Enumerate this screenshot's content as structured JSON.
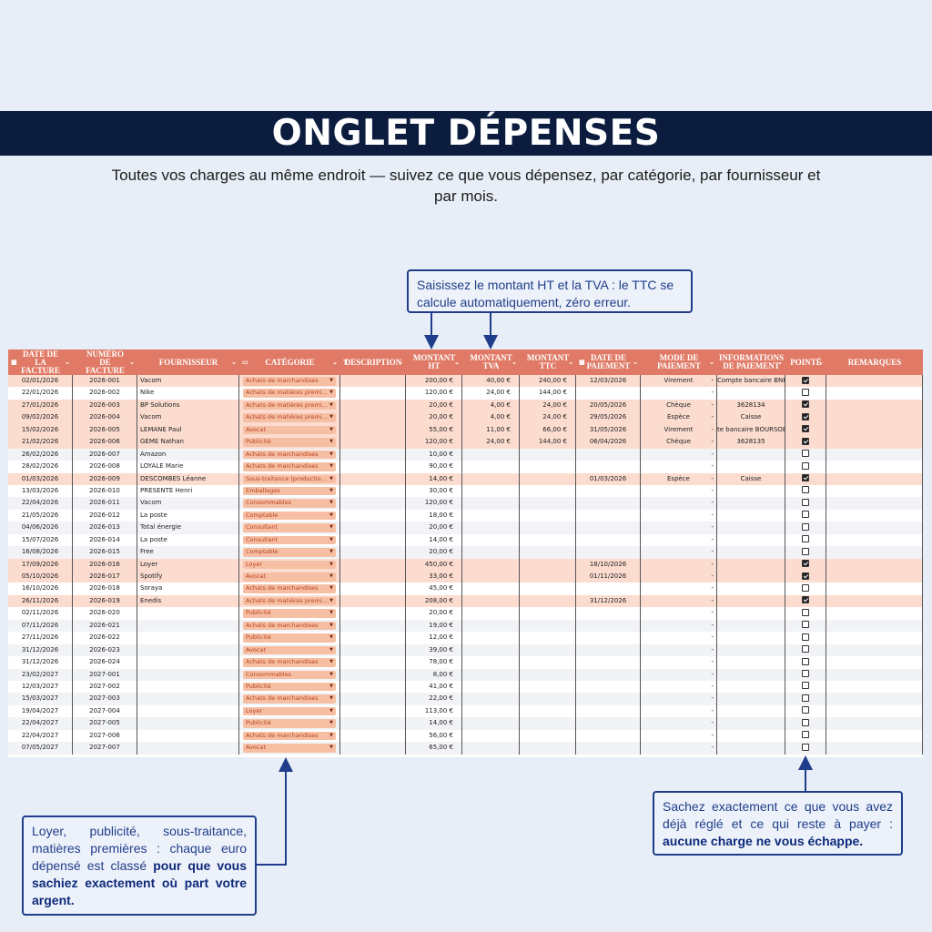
{
  "header": {
    "title": "ONGLET DÉPENSES",
    "subtitle": "Toutes vos charges au même endroit — suivez ce que vous dépensez, par catégorie, par fournisseur et par mois."
  },
  "callouts": {
    "top": "Saisissez le montant HT et la TVA : le TTC se calcule automatiquement, zéro erreur.",
    "left_plain": "Loyer, publicité, sous-traitance, matières premières : chaque euro dépensé est classé ",
    "left_bold": "pour que vous sachiez exactement où part votre argent.",
    "right_plain": "Sachez exactement ce que vous avez déjà réglé et ce qui reste à payer : ",
    "right_bold": "aucune charge ne vous échappe."
  },
  "colors": {
    "banner": "#0c1c3f",
    "header_row": "#e07a66",
    "row_pink": "#fbdccf",
    "chip": "#f6bfa3",
    "callout_border": "#1f3d8a"
  },
  "table": {
    "columns": [
      {
        "label": "Date de la facture",
        "icon": "calendar-icon",
        "chev": true
      },
      {
        "label": "Numéro de facture",
        "icon": "",
        "chev": true
      },
      {
        "label": "Fournisseur",
        "icon": "",
        "chev": true
      },
      {
        "label": "Catégorie",
        "icon": "dropdown-chip-icon",
        "chev": true
      },
      {
        "label": "Description",
        "icon": "text-icon",
        "chev": true
      },
      {
        "label": "Montant HT",
        "icon": "",
        "chev": true
      },
      {
        "label": "Montant TVA",
        "icon": "",
        "chev": true
      },
      {
        "label": "Montant TTC",
        "icon": "",
        "chev": true
      },
      {
        "label": "Date de paiement",
        "icon": "calendar-icon",
        "chev": true
      },
      {
        "label": "Mode de paiement",
        "icon": "",
        "chev": true
      },
      {
        "label": "Informations de paiement",
        "icon": "",
        "chev": true
      },
      {
        "label": "Pointé",
        "icon": "",
        "chev": true
      },
      {
        "label": "Remarques",
        "icon": "",
        "chev": false
      }
    ],
    "rows": [
      {
        "date": "02/01/2026",
        "num": "2026-001",
        "four": "Vacom",
        "cat": "Achats de marchandises",
        "ht": "200,00 €",
        "tva": "40,00 €",
        "ttc": "240,00 €",
        "pay": "12/03/2026",
        "mode": "Virement",
        "info": "Compte bancaire BNP",
        "chk": true
      },
      {
        "date": "22/01/2026",
        "num": "2026-002",
        "four": "Nike",
        "cat": "Achats de matières premi...",
        "ht": "120,00 €",
        "tva": "24,00 €",
        "ttc": "144,00 €",
        "pay": "",
        "mode": "",
        "info": "",
        "chk": false
      },
      {
        "date": "27/01/2026",
        "num": "2026-003",
        "four": "BP Solutions",
        "cat": "Achats de matières premi...",
        "ht": "20,00 €",
        "tva": "4,00 €",
        "ttc": "24,00 €",
        "pay": "20/05/2026",
        "mode": "Chèque",
        "info": "3628134",
        "chk": true
      },
      {
        "date": "09/02/2026",
        "num": "2026-004",
        "four": "Vacom",
        "cat": "Achats de matières premi...",
        "ht": "20,00 €",
        "tva": "4,00 €",
        "ttc": "24,00 €",
        "pay": "29/05/2026",
        "mode": "Espèce",
        "info": "Caisse",
        "chk": true
      },
      {
        "date": "15/02/2026",
        "num": "2026-005",
        "four": "LEMANE Paul",
        "cat": "Avocat",
        "ht": "55,00 €",
        "tva": "11,00 €",
        "ttc": "66,00 €",
        "pay": "31/05/2026",
        "mode": "Virement",
        "info": "te bancaire BOURSOB",
        "chk": true
      },
      {
        "date": "21/02/2026",
        "num": "2026-006",
        "four": "GEME Nathan",
        "cat": "Publicité",
        "ht": "120,00 €",
        "tva": "24,00 €",
        "ttc": "144,00 €",
        "pay": "06/04/2026",
        "mode": "Chèque",
        "info": "3628135",
        "chk": true
      },
      {
        "date": "26/02/2026",
        "num": "2026-007",
        "four": "Amazon",
        "cat": "Achats de marchandises",
        "ht": "10,00 €",
        "tva": "",
        "ttc": "",
        "pay": "",
        "mode": "",
        "info": "",
        "chk": false
      },
      {
        "date": "28/02/2026",
        "num": "2026-008",
        "four": "LOYALE Marie",
        "cat": "Achats de marchandises",
        "ht": "90,00 €",
        "tva": "",
        "ttc": "",
        "pay": "",
        "mode": "",
        "info": "",
        "chk": false
      },
      {
        "date": "01/03/2026",
        "num": "2026-009",
        "four": "DESCOMBES Léanne",
        "cat": "Sous-traitance (productio...",
        "ht": "14,00 €",
        "tva": "",
        "ttc": "",
        "pay": "01/03/2026",
        "mode": "Espèce",
        "info": "Caisse",
        "chk": true
      },
      {
        "date": "13/03/2026",
        "num": "2026-010",
        "four": "PRESENTE Henri",
        "cat": "Emballages",
        "ht": "30,00 €",
        "tva": "",
        "ttc": "",
        "pay": "",
        "mode": "",
        "info": "",
        "chk": false
      },
      {
        "date": "22/04/2026",
        "num": "2026-011",
        "four": "Vacom",
        "cat": "Consommables",
        "ht": "120,00 €",
        "tva": "",
        "ttc": "",
        "pay": "",
        "mode": "",
        "info": "",
        "chk": false
      },
      {
        "date": "21/05/2026",
        "num": "2026-012",
        "four": "La poste",
        "cat": "Comptable",
        "ht": "18,00 €",
        "tva": "",
        "ttc": "",
        "pay": "",
        "mode": "",
        "info": "",
        "chk": false
      },
      {
        "date": "04/06/2026",
        "num": "2026-013",
        "four": "Total énergie",
        "cat": "Consultant",
        "ht": "20,00 €",
        "tva": "",
        "ttc": "",
        "pay": "",
        "mode": "",
        "info": "",
        "chk": false
      },
      {
        "date": "15/07/2026",
        "num": "2026-014",
        "four": "La poste",
        "cat": "Consultant",
        "ht": "14,00 €",
        "tva": "",
        "ttc": "",
        "pay": "",
        "mode": "",
        "info": "",
        "chk": false
      },
      {
        "date": "16/08/2026",
        "num": "2026-015",
        "four": "Free",
        "cat": "Comptable",
        "ht": "20,00 €",
        "tva": "",
        "ttc": "",
        "pay": "",
        "mode": "",
        "info": "",
        "chk": false
      },
      {
        "date": "17/09/2026",
        "num": "2026-016",
        "four": "Loyer",
        "cat": "Loyer",
        "ht": "450,00 €",
        "tva": "",
        "ttc": "",
        "pay": "18/10/2026",
        "mode": "",
        "info": "",
        "chk": true
      },
      {
        "date": "05/10/2026",
        "num": "2026-017",
        "four": "Spotify",
        "cat": "Avocat",
        "ht": "33,00 €",
        "tva": "",
        "ttc": "",
        "pay": "01/11/2026",
        "mode": "",
        "info": "",
        "chk": true
      },
      {
        "date": "16/10/2026",
        "num": "2026-018",
        "four": "Soraya",
        "cat": "Achats de marchandises",
        "ht": "45,00 €",
        "tva": "",
        "ttc": "",
        "pay": "",
        "mode": "",
        "info": "",
        "chk": false
      },
      {
        "date": "26/11/2026",
        "num": "2026-019",
        "four": "Enedis",
        "cat": "Achats de matières premi...",
        "ht": "208,00 €",
        "tva": "",
        "ttc": "",
        "pay": "31/12/2026",
        "mode": "",
        "info": "",
        "chk": true
      },
      {
        "date": "02/11/2026",
        "num": "2026-020",
        "four": "",
        "cat": "Publicité",
        "ht": "20,00 €",
        "tva": "",
        "ttc": "",
        "pay": "",
        "mode": "",
        "info": "",
        "chk": false
      },
      {
        "date": "07/11/2026",
        "num": "2026-021",
        "four": "",
        "cat": "Achats de marchandises",
        "ht": "19,00 €",
        "tva": "",
        "ttc": "",
        "pay": "",
        "mode": "",
        "info": "",
        "chk": false
      },
      {
        "date": "27/11/2026",
        "num": "2026-022",
        "four": "",
        "cat": "Publicité",
        "ht": "12,00 €",
        "tva": "",
        "ttc": "",
        "pay": "",
        "mode": "",
        "info": "",
        "chk": false
      },
      {
        "date": "31/12/2026",
        "num": "2026-023",
        "four": "",
        "cat": "Avocat",
        "ht": "39,00 €",
        "tva": "",
        "ttc": "",
        "pay": "",
        "mode": "",
        "info": "",
        "chk": false
      },
      {
        "date": "31/12/2026",
        "num": "2026-024",
        "four": "",
        "cat": "Achats de marchandises",
        "ht": "78,00 €",
        "tva": "",
        "ttc": "",
        "pay": "",
        "mode": "",
        "info": "",
        "chk": false
      },
      {
        "date": "23/02/2027",
        "num": "2027-001",
        "four": "",
        "cat": "Consommables",
        "ht": "8,00 €",
        "tva": "",
        "ttc": "",
        "pay": "",
        "mode": "",
        "info": "",
        "chk": false
      },
      {
        "date": "12/03/2027",
        "num": "2027-002",
        "four": "",
        "cat": "Publicité",
        "ht": "41,00 €",
        "tva": "",
        "ttc": "",
        "pay": "",
        "mode": "",
        "info": "",
        "chk": false
      },
      {
        "date": "15/03/2027",
        "num": "2027-003",
        "four": "",
        "cat": "Achats de marchandises",
        "ht": "22,00 €",
        "tva": "",
        "ttc": "",
        "pay": "",
        "mode": "",
        "info": "",
        "chk": false
      },
      {
        "date": "19/04/2027",
        "num": "2027-004",
        "four": "",
        "cat": "Loyer",
        "ht": "113,00 €",
        "tva": "",
        "ttc": "",
        "pay": "",
        "mode": "",
        "info": "",
        "chk": false
      },
      {
        "date": "22/04/2027",
        "num": "2027-005",
        "four": "",
        "cat": "Publicité",
        "ht": "14,00 €",
        "tva": "",
        "ttc": "",
        "pay": "",
        "mode": "",
        "info": "",
        "chk": false
      },
      {
        "date": "22/04/2027",
        "num": "2027-006",
        "four": "",
        "cat": "Achats de marchandises",
        "ht": "56,00 €",
        "tva": "",
        "ttc": "",
        "pay": "",
        "mode": "",
        "info": "",
        "chk": false
      },
      {
        "date": "07/05/2027",
        "num": "2027-007",
        "four": "",
        "cat": "Avocat",
        "ht": "65,00 €",
        "tva": "",
        "ttc": "",
        "pay": "",
        "mode": "",
        "info": "",
        "chk": false
      }
    ]
  }
}
